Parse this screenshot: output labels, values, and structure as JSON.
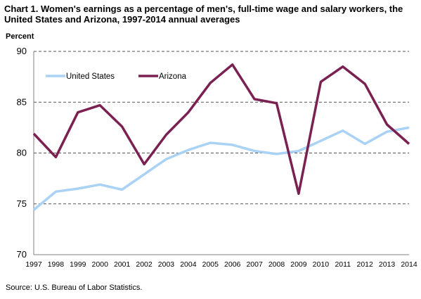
{
  "title": "Chart 1. Women's earnings as a percentage of men's, full-time wage and salary workers, the United  States and Arizona, 1997-2014  annual averages",
  "source": "Source:  U.S.  Bureau of Labor Statistics.",
  "colors": {
    "us": "#a9d2f5",
    "az": "#7b2152",
    "grid": "#555555",
    "axis": "#808080"
  },
  "chart_data": {
    "type": "line",
    "title": "Chart 1. Women's earnings as a percentage of men's, full-time wage and salary workers, the United  States and Arizona, 1997-2014  annual averages",
    "xlabel": "",
    "ylabel": "Percent",
    "ylim": [
      70,
      90
    ],
    "yticks": [
      "70",
      "75",
      "80",
      "85",
      "90"
    ],
    "grid": "horizontal dashed",
    "legend": "top-left",
    "x": [
      "1997",
      "1998",
      "1999",
      "2000",
      "2001",
      "2002",
      "2003",
      "2004",
      "2005",
      "2006",
      "2007",
      "2008",
      "2009",
      "2010",
      "2011",
      "2012",
      "2013",
      "2014"
    ],
    "series": [
      {
        "name": "United States",
        "color": "#a9d2f5",
        "values": [
          74.4,
          76.2,
          76.5,
          76.9,
          76.4,
          77.9,
          79.4,
          80.3,
          81.0,
          80.8,
          80.2,
          79.9,
          80.2,
          81.2,
          82.2,
          80.9,
          82.1,
          82.5
        ]
      },
      {
        "name": "Arizona",
        "color": "#7b2152",
        "values": [
          81.9,
          79.6,
          84.0,
          84.7,
          82.6,
          78.9,
          81.8,
          84.0,
          86.9,
          88.7,
          85.3,
          84.9,
          76.0,
          87.0,
          88.5,
          86.8,
          82.8,
          80.9
        ]
      }
    ]
  }
}
